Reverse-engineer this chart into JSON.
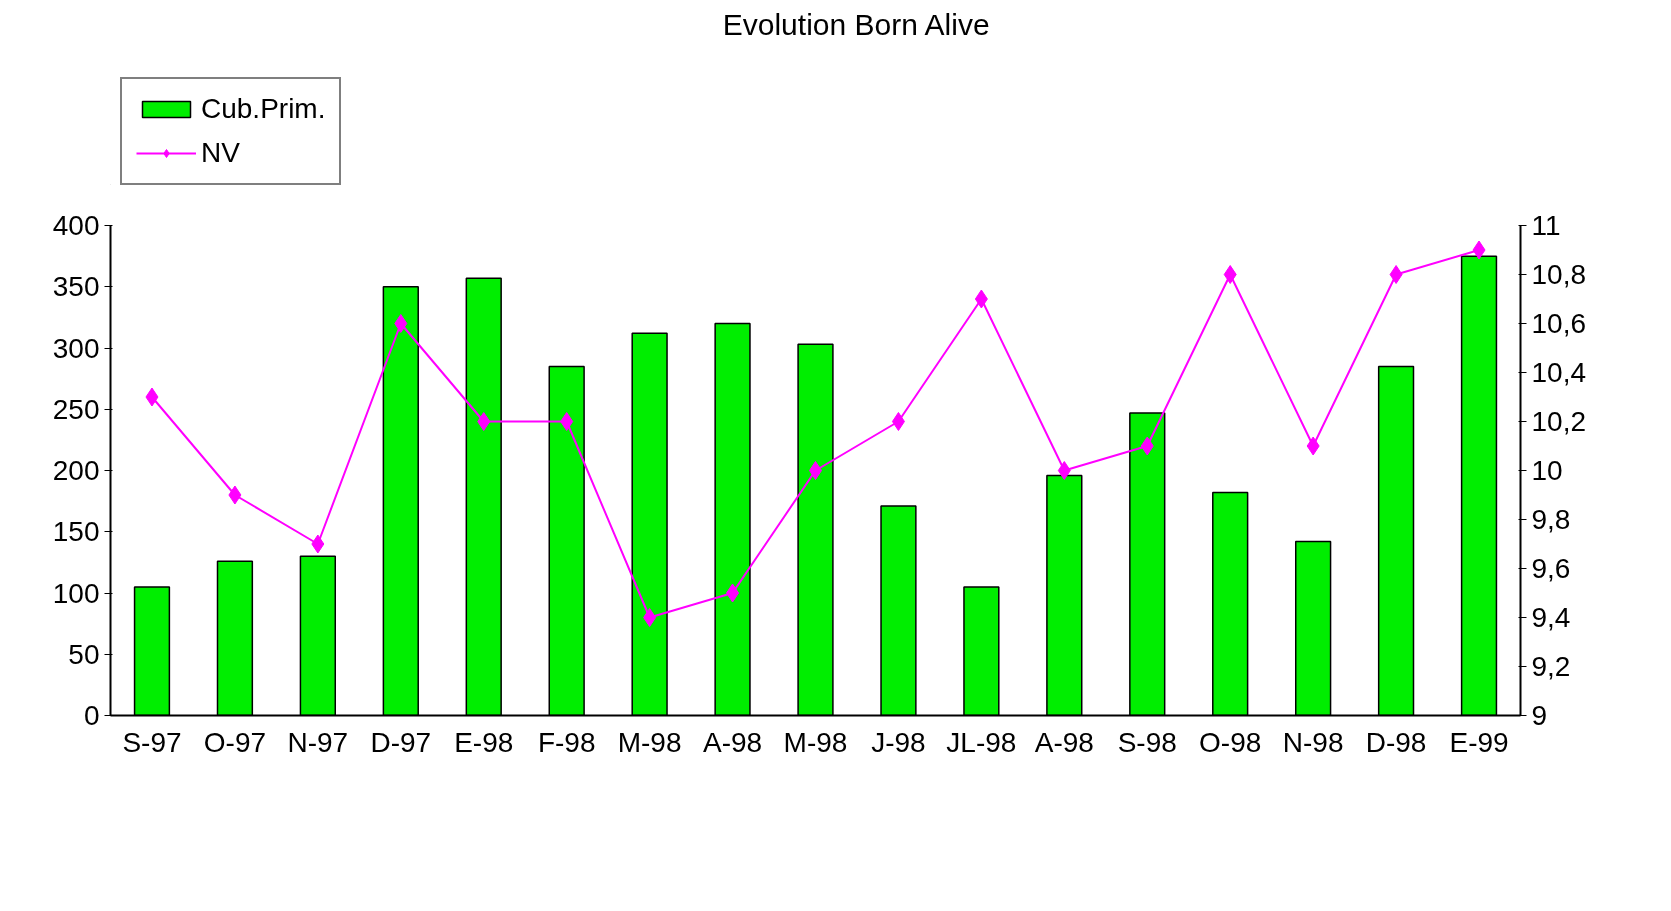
{
  "chart_data": {
    "type": "bar",
    "title": "Evolution Born Alive",
    "categories": [
      "S-97",
      "O-97",
      "N-97",
      "D-97",
      "E-98",
      "F-98",
      "M-98",
      "A-98",
      "M-98",
      "J-98",
      "JL-98",
      "A-98",
      "S-98",
      "O-98",
      "N-98",
      "D-98",
      "E-99"
    ],
    "series": [
      {
        "name": "Cub.Prim.",
        "color": "#00ee00",
        "values": [
          105,
          126,
          130,
          350,
          357,
          285,
          312,
          320,
          303,
          171,
          105,
          196,
          247,
          182,
          142,
          285,
          375
        ]
      },
      {
        "name": "NV",
        "type": "line",
        "axis": "y2",
        "color": "#ff00ff",
        "marker": "diamond",
        "values": [
          10.3,
          9.9,
          9.7,
          10.6,
          10.2,
          10.2,
          9.4,
          9.5,
          10.0,
          10.2,
          10.7,
          10.0,
          10.1,
          10.8,
          10.1,
          10.8,
          10.9
        ]
      }
    ],
    "ylim": [
      0,
      400
    ],
    "yticks": [
      0,
      50,
      100,
      150,
      200,
      250,
      300,
      350,
      400
    ],
    "y2lim": [
      9,
      11
    ],
    "y2ticks": [
      9,
      {
        "value": 9.2,
        "label": "9,2"
      },
      {
        "value": 9.4,
        "label": "9,4"
      },
      {
        "value": 9.6,
        "label": "9,6"
      },
      {
        "value": 9.8,
        "label": "9,8"
      },
      10,
      {
        "value": 10.2,
        "label": "10,2"
      },
      {
        "value": 10.4,
        "label": "10,4"
      },
      {
        "value": 10.6,
        "label": "10,6"
      },
      {
        "value": 10.8,
        "label": "10,8"
      },
      11
    ],
    "grid": false,
    "legend": "top left"
  }
}
